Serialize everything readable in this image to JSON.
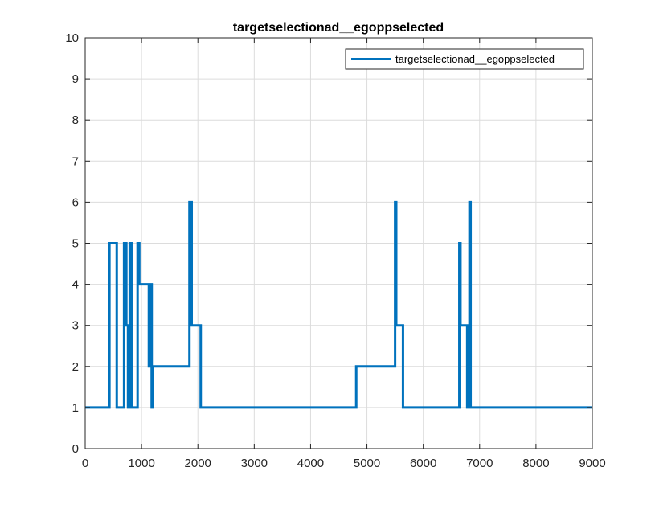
{
  "chart_data": {
    "type": "line",
    "title": "targetselectionad__egoppselected",
    "xlabel": "",
    "ylabel": "",
    "xlim": [
      0,
      9000
    ],
    "ylim": [
      0,
      10
    ],
    "x_ticks": [
      0,
      1000,
      2000,
      3000,
      4000,
      5000,
      6000,
      7000,
      8000,
      9000
    ],
    "y_ticks": [
      0,
      1,
      2,
      3,
      4,
      5,
      6,
      7,
      8,
      9,
      10
    ],
    "grid": true,
    "legend_position": "top-right",
    "colors": {
      "series": "#0072BD",
      "grid": "#dcdcdc",
      "axis": "#262626"
    },
    "series": [
      {
        "name": "targetselectionad__egoppselected",
        "step": true,
        "x": [
          0,
          430,
          560,
          690,
          730,
          760,
          790,
          820,
          930,
          960,
          1130,
          1150,
          1180,
          1200,
          1850,
          1870,
          1890,
          2050,
          4810,
          5500,
          5520,
          5640,
          6640,
          6660,
          6780,
          6820,
          6840,
          6860,
          9000
        ],
        "y": [
          1,
          5,
          1,
          5,
          3,
          1,
          5,
          1,
          5,
          4,
          2,
          4,
          1,
          2,
          6,
          6,
          3,
          1,
          2,
          6,
          3,
          1,
          5,
          3,
          1,
          6,
          1,
          1,
          1
        ]
      }
    ]
  }
}
